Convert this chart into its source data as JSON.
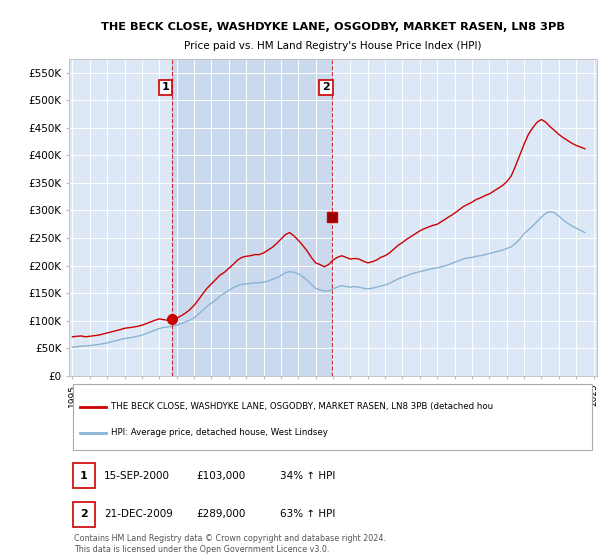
{
  "title": "THE BECK CLOSE, WASHDYKE LANE, OSGODBY, MARKET RASEN, LN8 3PB",
  "subtitle": "Price paid vs. HM Land Registry's House Price Index (HPI)",
  "ylabel_ticks": [
    "£0",
    "£50K",
    "£100K",
    "£150K",
    "£200K",
    "£250K",
    "£300K",
    "£350K",
    "£400K",
    "£450K",
    "£500K",
    "£550K"
  ],
  "ylim": [
    0,
    575000
  ],
  "plot_bg": "#dce8f5",
  "red_line_color": "#cc0000",
  "blue_line_color": "#8ab4d4",
  "shade_color": "#c8d8ee",
  "hpi_x": [
    1995.0,
    1995.25,
    1995.5,
    1995.75,
    1996.0,
    1996.25,
    1996.5,
    1996.75,
    1997.0,
    1997.25,
    1997.5,
    1997.75,
    1998.0,
    1998.25,
    1998.5,
    1998.75,
    1999.0,
    1999.25,
    1999.5,
    1999.75,
    2000.0,
    2000.25,
    2000.5,
    2000.75,
    2001.0,
    2001.25,
    2001.5,
    2001.75,
    2002.0,
    2002.25,
    2002.5,
    2002.75,
    2003.0,
    2003.25,
    2003.5,
    2003.75,
    2004.0,
    2004.25,
    2004.5,
    2004.75,
    2005.0,
    2005.25,
    2005.5,
    2005.75,
    2006.0,
    2006.25,
    2006.5,
    2006.75,
    2007.0,
    2007.25,
    2007.5,
    2007.75,
    2008.0,
    2008.25,
    2008.5,
    2008.75,
    2009.0,
    2009.25,
    2009.5,
    2009.75,
    2010.0,
    2010.25,
    2010.5,
    2010.75,
    2011.0,
    2011.25,
    2011.5,
    2011.75,
    2012.0,
    2012.25,
    2012.5,
    2012.75,
    2013.0,
    2013.25,
    2013.5,
    2013.75,
    2014.0,
    2014.25,
    2014.5,
    2014.75,
    2015.0,
    2015.25,
    2015.5,
    2015.75,
    2016.0,
    2016.25,
    2016.5,
    2016.75,
    2017.0,
    2017.25,
    2017.5,
    2017.75,
    2018.0,
    2018.25,
    2018.5,
    2018.75,
    2019.0,
    2019.25,
    2019.5,
    2019.75,
    2020.0,
    2020.25,
    2020.5,
    2020.75,
    2021.0,
    2021.25,
    2021.5,
    2021.75,
    2022.0,
    2022.25,
    2022.5,
    2022.75,
    2023.0,
    2023.25,
    2023.5,
    2023.75,
    2024.0,
    2024.25,
    2024.5
  ],
  "hpi_y": [
    52000,
    53000,
    54000,
    54500,
    55000,
    56000,
    57000,
    58500,
    60000,
    62000,
    64000,
    66000,
    68000,
    69000,
    70500,
    72000,
    74000,
    77000,
    80000,
    83000,
    86000,
    88000,
    89000,
    90000,
    92000,
    95000,
    98000,
    101000,
    105000,
    112000,
    119000,
    126000,
    132000,
    138000,
    145000,
    150000,
    155000,
    160000,
    164000,
    166000,
    167000,
    168000,
    169000,
    169000,
    170000,
    172000,
    175000,
    178000,
    182000,
    187000,
    189000,
    188000,
    185000,
    180000,
    174000,
    166000,
    159000,
    156000,
    154000,
    154000,
    158000,
    161000,
    164000,
    162000,
    161000,
    162000,
    161000,
    159000,
    158000,
    159000,
    161000,
    163000,
    165000,
    168000,
    172000,
    176000,
    179000,
    182000,
    185000,
    187000,
    189000,
    191000,
    193000,
    195000,
    196000,
    198000,
    200000,
    203000,
    206000,
    209000,
    212000,
    214000,
    215000,
    217000,
    218000,
    220000,
    222000,
    224000,
    226000,
    228000,
    231000,
    234000,
    240000,
    248000,
    258000,
    265000,
    272000,
    280000,
    288000,
    295000,
    298000,
    296000,
    290000,
    283000,
    277000,
    272000,
    268000,
    264000,
    260000
  ],
  "red_x": [
    1995.0,
    1995.25,
    1995.5,
    1995.75,
    1996.0,
    1996.25,
    1996.5,
    1996.75,
    1997.0,
    1997.25,
    1997.5,
    1997.75,
    1998.0,
    1998.25,
    1998.5,
    1998.75,
    1999.0,
    1999.25,
    1999.5,
    1999.75,
    2000.0,
    2000.25,
    2000.5,
    2000.75,
    2001.0,
    2001.25,
    2001.5,
    2001.75,
    2002.0,
    2002.25,
    2002.5,
    2002.75,
    2003.0,
    2003.25,
    2003.5,
    2003.75,
    2004.0,
    2004.25,
    2004.5,
    2004.75,
    2005.0,
    2005.25,
    2005.5,
    2005.75,
    2006.0,
    2006.25,
    2006.5,
    2006.75,
    2007.0,
    2007.25,
    2007.5,
    2007.75,
    2008.0,
    2008.25,
    2008.5,
    2008.75,
    2009.0,
    2009.25,
    2009.5,
    2009.75,
    2010.0,
    2010.25,
    2010.5,
    2010.75,
    2011.0,
    2011.25,
    2011.5,
    2011.75,
    2012.0,
    2012.25,
    2012.5,
    2012.75,
    2013.0,
    2013.25,
    2013.5,
    2013.75,
    2014.0,
    2014.25,
    2014.5,
    2014.75,
    2015.0,
    2015.25,
    2015.5,
    2015.75,
    2016.0,
    2016.25,
    2016.5,
    2016.75,
    2017.0,
    2017.25,
    2017.5,
    2017.75,
    2018.0,
    2018.25,
    2018.5,
    2018.75,
    2019.0,
    2019.25,
    2019.5,
    2019.75,
    2020.0,
    2020.25,
    2020.5,
    2020.75,
    2021.0,
    2021.25,
    2021.5,
    2021.75,
    2022.0,
    2022.25,
    2022.5,
    2022.75,
    2023.0,
    2023.25,
    2023.5,
    2023.75,
    2024.0,
    2024.25,
    2024.5
  ],
  "red_y": [
    71000,
    72000,
    72500,
    71000,
    72000,
    73000,
    74000,
    76000,
    78000,
    80000,
    82000,
    84000,
    86500,
    87500,
    88500,
    90000,
    92000,
    95000,
    98000,
    101000,
    103500,
    102000,
    101000,
    102500,
    105000,
    109000,
    114000,
    120000,
    128000,
    138000,
    149000,
    159000,
    167000,
    175000,
    183000,
    188000,
    195000,
    202000,
    210000,
    215000,
    217000,
    218000,
    220000,
    220000,
    223000,
    228000,
    233000,
    240000,
    248000,
    256000,
    260000,
    254000,
    246000,
    237000,
    227000,
    215000,
    205000,
    202000,
    198000,
    202000,
    210000,
    215000,
    218000,
    215000,
    212000,
    213000,
    212000,
    208000,
    205000,
    207000,
    210000,
    215000,
    218000,
    223000,
    230000,
    237000,
    242000,
    248000,
    253000,
    258000,
    263000,
    267000,
    270000,
    273000,
    275000,
    280000,
    285000,
    290000,
    295000,
    301000,
    307000,
    311000,
    315000,
    320000,
    323000,
    327000,
    330000,
    335000,
    340000,
    345000,
    352000,
    362000,
    380000,
    400000,
    420000,
    438000,
    450000,
    460000,
    465000,
    460000,
    452000,
    445000,
    438000,
    432000,
    427000,
    422000,
    418000,
    415000,
    412000
  ],
  "point1_x": 2000.71,
  "point1_y": 103000,
  "point2_x": 2009.97,
  "point2_y": 289000,
  "vline1_x": 2000.71,
  "vline2_x": 2009.97,
  "xmin": 1994.8,
  "xmax": 2025.2,
  "xtick_years": [
    1995,
    1996,
    1997,
    1998,
    1999,
    2000,
    2001,
    2002,
    2003,
    2004,
    2005,
    2006,
    2007,
    2008,
    2009,
    2010,
    2011,
    2012,
    2013,
    2014,
    2015,
    2016,
    2017,
    2018,
    2019,
    2020,
    2021,
    2022,
    2023,
    2024,
    2025
  ],
  "legend_red_label": "THE BECK CLOSE, WASHDYKE LANE, OSGODBY, MARKET RASEN, LN8 3PB (detached hou",
  "legend_blue_label": "HPI: Average price, detached house, West Lindsey",
  "table_rows": [
    {
      "num": "1",
      "date": "15-SEP-2000",
      "price": "£103,000",
      "change": "34% ↑ HPI"
    },
    {
      "num": "2",
      "date": "21-DEC-2009",
      "price": "£289,000",
      "change": "63% ↑ HPI"
    }
  ],
  "footnote": "Contains HM Land Registry data © Crown copyright and database right 2024.\nThis data is licensed under the Open Government Licence v3.0.",
  "chart_height_ratio": 2.8,
  "bottom_height_ratio": 1.6
}
